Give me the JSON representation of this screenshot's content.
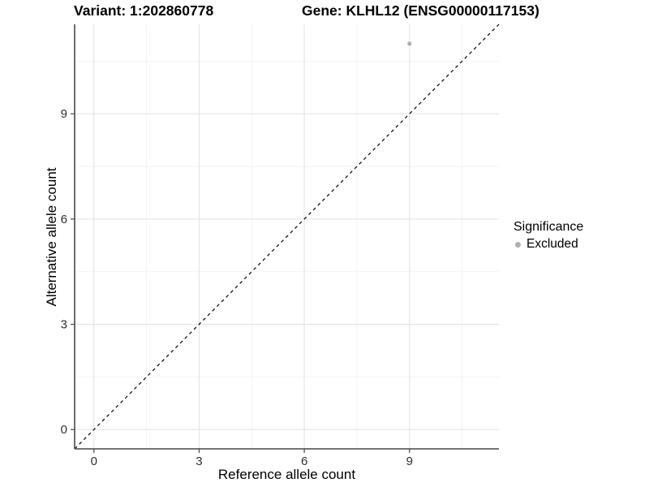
{
  "chart_data": {
    "type": "scatter",
    "titles": [
      "Variant: 1:202860778",
      "Gene: KLHL12 (ENSG00000117153)"
    ],
    "xlabel": "Reference allele count",
    "ylabel": "Alternative allele count",
    "xlim": [
      -0.55,
      11.55
    ],
    "ylim": [
      -0.55,
      11.55
    ],
    "x_ticks": [
      0,
      3,
      6,
      9
    ],
    "y_ticks": [
      0,
      3,
      6,
      9
    ],
    "x_minor_ticks": [
      1.5,
      4.5,
      7.5,
      10.5
    ],
    "y_minor_ticks": [
      1.5,
      4.5,
      7.5,
      10.5
    ],
    "grid": "major+minor",
    "legend_title": "Significance",
    "legend_position": "right-middle",
    "series": [
      {
        "name": "Excluded",
        "marker": "circle",
        "color": "#b0b0b0",
        "points": [
          {
            "x": 9,
            "y": 11
          }
        ]
      }
    ],
    "reference_line": {
      "description": "identity line y = x",
      "slope": 1,
      "intercept": 0,
      "style": "dashed",
      "color": "#000000"
    },
    "style": {
      "background": "#ffffff",
      "grid_major_color": "#e4e4e4",
      "grid_minor_color": "#f0f0f0",
      "axis_line_color": "#474747",
      "tick_label_color": "#303030"
    }
  }
}
